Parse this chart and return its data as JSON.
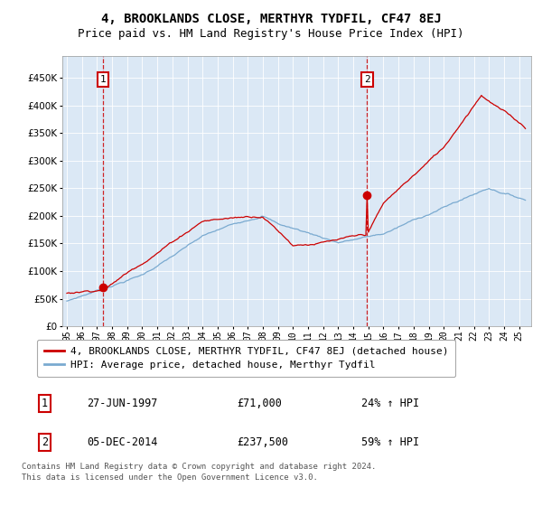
{
  "title": "4, BROOKLANDS CLOSE, MERTHYR TYDFIL, CF47 8EJ",
  "subtitle": "Price paid vs. HM Land Registry's House Price Index (HPI)",
  "legend_line1": "4, BROOKLANDS CLOSE, MERTHYR TYDFIL, CF47 8EJ (detached house)",
  "legend_line2": "HPI: Average price, detached house, Merthyr Tydfil",
  "marker1_date": "27-JUN-1997",
  "marker1_price": 71000,
  "marker1_label": "£71,000",
  "marker1_pct": "24% ↑ HPI",
  "marker2_date": "05-DEC-2014",
  "marker2_price": 237500,
  "marker2_label": "£237,500",
  "marker2_pct": "59% ↑ HPI",
  "footer": "Contains HM Land Registry data © Crown copyright and database right 2024.\nThis data is licensed under the Open Government Licence v3.0.",
  "hpi_color": "#7aaad0",
  "price_color": "#cc0000",
  "marker_color": "#cc0000",
  "vline_color": "#cc0000",
  "plot_bg": "#dbe8f5",
  "ylim_max": 500000,
  "yticks": [
    0,
    50000,
    100000,
    150000,
    200000,
    250000,
    300000,
    350000,
    400000,
    450000
  ],
  "title_fontsize": 10,
  "subtitle_fontsize": 9
}
